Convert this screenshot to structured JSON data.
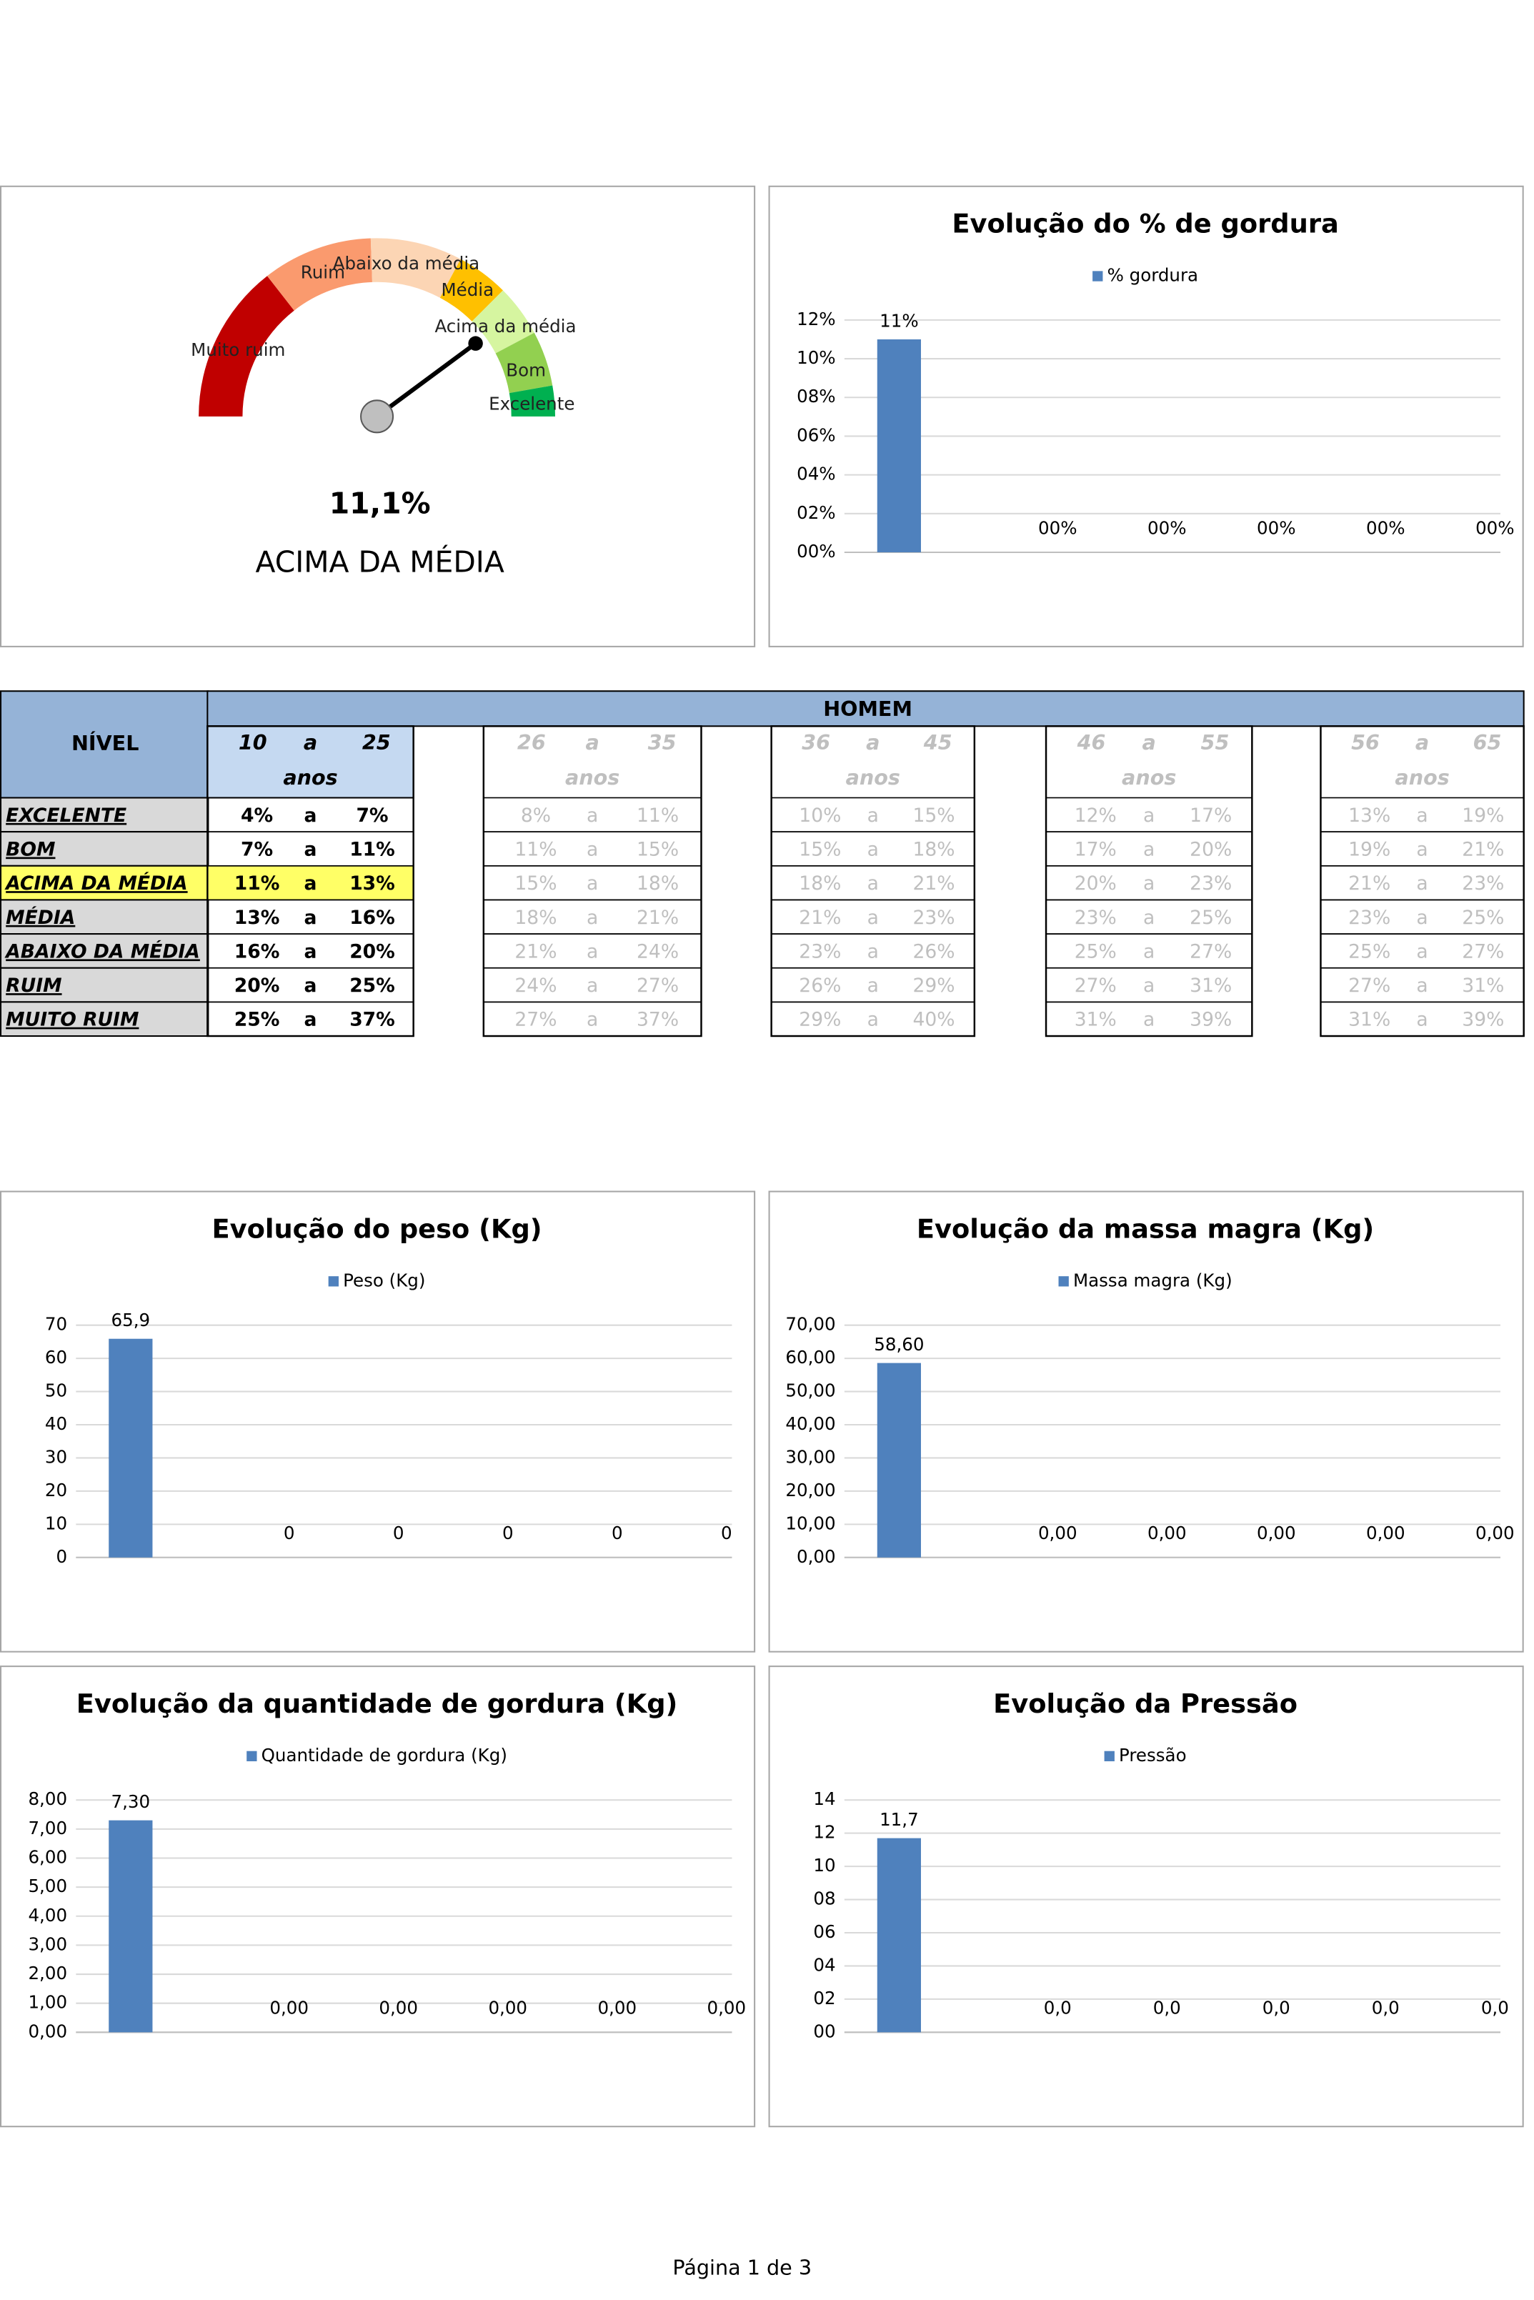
{
  "gauge": {
    "value": 11.1,
    "value_label": "11,1%",
    "status": "ACIMA DA MÉDIA",
    "segments": [
      {
        "label": "Muito ruim",
        "color": "#c00000"
      },
      {
        "label": "Ruim",
        "color": "#fa9a6e"
      },
      {
        "label": "Abaixo da média",
        "color": "#fcd5b4"
      },
      {
        "label": "Média",
        "color": "#ffc000"
      },
      {
        "label": "Acima da média",
        "color": "#d6f5a0"
      },
      {
        "label": "Bom",
        "color": "#92d050"
      },
      {
        "label": "Excelente",
        "color": "#00b050"
      }
    ]
  },
  "chart_data": [
    {
      "type": "bar",
      "title": "Evolução do % de gordura",
      "categories": [
        null,
        null,
        null,
        null,
        null,
        null
      ],
      "series": [
        {
          "name": "% gordura",
          "color": "#4f81bd",
          "values": [
            11,
            0,
            0,
            0,
            0,
            0
          ],
          "value_labels": [
            "11%",
            "00%",
            "00%",
            "00%",
            "00%",
            "00%"
          ]
        }
      ],
      "ylim": [
        0,
        12
      ],
      "yticks": [
        {
          "value": 0,
          "label": "00%"
        },
        {
          "value": 2,
          "label": "02%"
        },
        {
          "value": 4,
          "label": "04%"
        },
        {
          "value": 6,
          "label": "06%"
        },
        {
          "value": 8,
          "label": "08%"
        },
        {
          "value": 10,
          "label": "10%"
        },
        {
          "value": 12,
          "label": "12%"
        }
      ],
      "grid": true,
      "legend": "top"
    },
    {
      "type": "bar",
      "title": "Evolução do peso (Kg)",
      "categories": [
        null,
        null,
        null,
        null,
        null,
        null
      ],
      "series": [
        {
          "name": "Peso (Kg)",
          "color": "#4f81bd",
          "values": [
            65.9,
            0,
            0,
            0,
            0,
            0
          ],
          "value_labels": [
            "65,9",
            "0",
            "0",
            "0",
            "0",
            "0"
          ]
        }
      ],
      "ylim": [
        0,
        70
      ],
      "yticks": [
        0,
        10,
        20,
        30,
        40,
        50,
        60,
        70
      ],
      "grid": true,
      "legend": "top"
    },
    {
      "type": "bar",
      "title": "Evolução da massa magra (Kg)",
      "categories": [
        null,
        null,
        null,
        null,
        null,
        null
      ],
      "series": [
        {
          "name": "Massa magra (Kg)",
          "color": "#4f81bd",
          "values": [
            58.6,
            0,
            0,
            0,
            0,
            0
          ],
          "value_labels": [
            "58,60",
            "0,00",
            "0,00",
            "0,00",
            "0,00",
            "0,00"
          ]
        }
      ],
      "ylim": [
        0,
        70
      ],
      "yticks": [
        {
          "value": 0,
          "label": "0,00"
        },
        {
          "value": 10,
          "label": "10,00"
        },
        {
          "value": 20,
          "label": "20,00"
        },
        {
          "value": 30,
          "label": "30,00"
        },
        {
          "value": 40,
          "label": "40,00"
        },
        {
          "value": 50,
          "label": "50,00"
        },
        {
          "value": 60,
          "label": "60,00"
        },
        {
          "value": 70,
          "label": "70,00"
        }
      ],
      "grid": true,
      "legend": "top"
    },
    {
      "type": "bar",
      "title": "Evolução da quantidade de gordura (Kg)",
      "categories": [
        null,
        null,
        null,
        null,
        null,
        null
      ],
      "series": [
        {
          "name": "Quantidade de gordura (Kg)",
          "color": "#4f81bd",
          "values": [
            7.3,
            0,
            0,
            0,
            0,
            0
          ],
          "value_labels": [
            "7,30",
            "0,00",
            "0,00",
            "0,00",
            "0,00",
            "0,00"
          ]
        }
      ],
      "ylim": [
        0,
        8
      ],
      "yticks": [
        {
          "value": 0,
          "label": "0,00"
        },
        {
          "value": 1,
          "label": "1,00"
        },
        {
          "value": 2,
          "label": "2,00"
        },
        {
          "value": 3,
          "label": "3,00"
        },
        {
          "value": 4,
          "label": "4,00"
        },
        {
          "value": 5,
          "label": "5,00"
        },
        {
          "value": 6,
          "label": "6,00"
        },
        {
          "value": 7,
          "label": "7,00"
        },
        {
          "value": 8,
          "label": "8,00"
        }
      ],
      "grid": true,
      "legend": "top"
    },
    {
      "type": "bar",
      "title": "Evolução da Pressão",
      "categories": [
        null,
        null,
        null,
        null,
        null,
        null
      ],
      "series": [
        {
          "name": "Pressão",
          "color": "#4f81bd",
          "values": [
            11.7,
            0,
            0,
            0,
            0,
            0
          ],
          "value_labels": [
            "11,7",
            "0,0",
            "0,0",
            "0,0",
            "0,0",
            "0,0"
          ]
        }
      ],
      "ylim": [
        0,
        14
      ],
      "yticks": [
        {
          "value": 0,
          "label": "00"
        },
        {
          "value": 2,
          "label": "02"
        },
        {
          "value": 4,
          "label": "04"
        },
        {
          "value": 6,
          "label": "06"
        },
        {
          "value": 8,
          "label": "08"
        },
        10,
        12,
        14
      ],
      "grid": true,
      "legend": "top"
    }
  ],
  "table": {
    "level_header": "NÍVEL",
    "group_header": "HOMEM",
    "separator": "a",
    "unit": "anos",
    "levels": [
      "EXCELENTE",
      "BOM",
      "ACIMA DA MÉDIA",
      "MÉDIA",
      "ABAIXO DA MÉDIA",
      "RUIM",
      "MUITO RUIM"
    ],
    "age_groups": [
      {
        "from": "10",
        "to": "25",
        "ranges": [
          [
            "4%",
            "7%"
          ],
          [
            "7%",
            "11%"
          ],
          [
            "11%",
            "13%"
          ],
          [
            "13%",
            "16%"
          ],
          [
            "16%",
            "20%"
          ],
          [
            "20%",
            "25%"
          ],
          [
            "25%",
            "37%"
          ]
        ]
      },
      {
        "from": "26",
        "to": "35",
        "ranges": [
          [
            "8%",
            "11%"
          ],
          [
            "11%",
            "15%"
          ],
          [
            "15%",
            "18%"
          ],
          [
            "18%",
            "21%"
          ],
          [
            "21%",
            "24%"
          ],
          [
            "24%",
            "27%"
          ],
          [
            "27%",
            "37%"
          ]
        ]
      },
      {
        "from": "36",
        "to": "45",
        "ranges": [
          [
            "10%",
            "15%"
          ],
          [
            "15%",
            "18%"
          ],
          [
            "18%",
            "21%"
          ],
          [
            "21%",
            "23%"
          ],
          [
            "23%",
            "26%"
          ],
          [
            "26%",
            "29%"
          ],
          [
            "29%",
            "40%"
          ]
        ]
      },
      {
        "from": "46",
        "to": "55",
        "ranges": [
          [
            "12%",
            "17%"
          ],
          [
            "17%",
            "20%"
          ],
          [
            "20%",
            "23%"
          ],
          [
            "23%",
            "25%"
          ],
          [
            "25%",
            "27%"
          ],
          [
            "27%",
            "31%"
          ],
          [
            "31%",
            "39%"
          ]
        ]
      },
      {
        "from": "56",
        "to": "65",
        "ranges": [
          [
            "13%",
            "19%"
          ],
          [
            "19%",
            "21%"
          ],
          [
            "21%",
            "23%"
          ],
          [
            "23%",
            "25%"
          ],
          [
            "25%",
            "27%"
          ],
          [
            "27%",
            "31%"
          ],
          [
            "31%",
            "39%"
          ]
        ]
      }
    ]
  },
  "footer": "Página 1 de 3"
}
